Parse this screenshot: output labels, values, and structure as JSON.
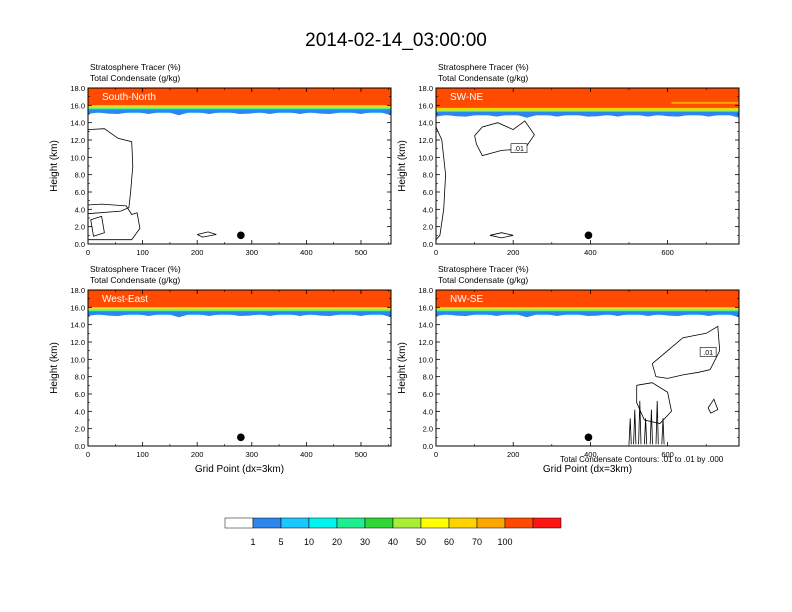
{
  "title": "2014-02-14_03:00:00",
  "footnote": "Total Condensate Contours: .01 to .01 by .000",
  "colors": {
    "white": "#ffffff",
    "bins": [
      "#ffffff",
      "#2b86ee",
      "#19c8ff",
      "#00f5f0",
      "#1eee90",
      "#2fd832",
      "#a8ee36",
      "#ffff00",
      "#ffd300",
      "#ffa500",
      "#ff4a00",
      "#ff1414"
    ]
  },
  "chart_data": [
    {
      "type": "contour",
      "panel_id": "south-north",
      "name": "South-North",
      "subtitle_line1": "Stratosphere Tracer   (%)",
      "subtitle_line2": "Total Condensate   (g/kg)",
      "ylabel": "Height (km)",
      "xlabel": "",
      "xlim": [
        0,
        555
      ],
      "ylim": [
        0,
        18
      ],
      "xticks": [
        0,
        100,
        200,
        300,
        400,
        500
      ],
      "yticks": [
        "0.0",
        "2.0",
        "4.0",
        "6.0",
        "8.0",
        "10.0",
        "12.0",
        "14.0",
        "16.0",
        "18.0"
      ],
      "tracer_base_km": 15.3,
      "marker": {
        "x": 280,
        "y": 1.0
      },
      "contour_label": ""
    },
    {
      "type": "contour",
      "panel_id": "sw-ne",
      "name": "SW-NE",
      "subtitle_line1": "Stratosphere Tracer   (%)",
      "subtitle_line2": "Total Condensate   (g/kg)",
      "ylabel": "Height (km)",
      "xlabel": "",
      "xlim": [
        0,
        785
      ],
      "ylim": [
        0,
        18
      ],
      "xticks": [
        0,
        200,
        400,
        600
      ],
      "yticks": [
        "0.0",
        "2.0",
        "4.0",
        "6.0",
        "8.0",
        "10.0",
        "12.0",
        "14.0",
        "16.0",
        "18.0"
      ],
      "tracer_base_km": 15.0,
      "marker": {
        "x": 395,
        "y": 1.0
      },
      "contour_label": ".01"
    },
    {
      "type": "contour",
      "panel_id": "west-east",
      "name": "West-East",
      "subtitle_line1": "Stratosphere Tracer   (%)",
      "subtitle_line2": "Total Condensate   (g/kg)",
      "ylabel": "Height (km)",
      "xlabel": "Grid Point (dx=3km)",
      "xlim": [
        0,
        555
      ],
      "ylim": [
        0,
        18
      ],
      "xticks": [
        0,
        100,
        200,
        300,
        400,
        500
      ],
      "yticks": [
        "0.0",
        "2.0",
        "4.0",
        "6.0",
        "8.0",
        "10.0",
        "12.0",
        "14.0",
        "16.0",
        "18.0"
      ],
      "tracer_base_km": 15.3,
      "marker": {
        "x": 280,
        "y": 1.0
      },
      "contour_label": ""
    },
    {
      "type": "contour",
      "panel_id": "nw-se",
      "name": "NW-SE",
      "subtitle_line1": "Stratosphere Tracer   (%)",
      "subtitle_line2": "Total Condensate   (g/kg)",
      "ylabel": "Height (km)",
      "xlabel": "Grid Point (dx=3km)",
      "xlim": [
        0,
        785
      ],
      "ylim": [
        0,
        18
      ],
      "xticks": [
        0,
        200,
        400,
        600
      ],
      "yticks": [
        "0.0",
        "2.0",
        "4.0",
        "6.0",
        "8.0",
        "10.0",
        "12.0",
        "14.0",
        "16.0",
        "18.0"
      ],
      "tracer_base_km": 15.3,
      "marker": {
        "x": 395,
        "y": 1.0
      },
      "contour_label": ".01"
    }
  ],
  "colorbar": {
    "labels": [
      "1",
      "5",
      "10",
      "20",
      "30",
      "40",
      "50",
      "60",
      "70",
      "100"
    ]
  }
}
